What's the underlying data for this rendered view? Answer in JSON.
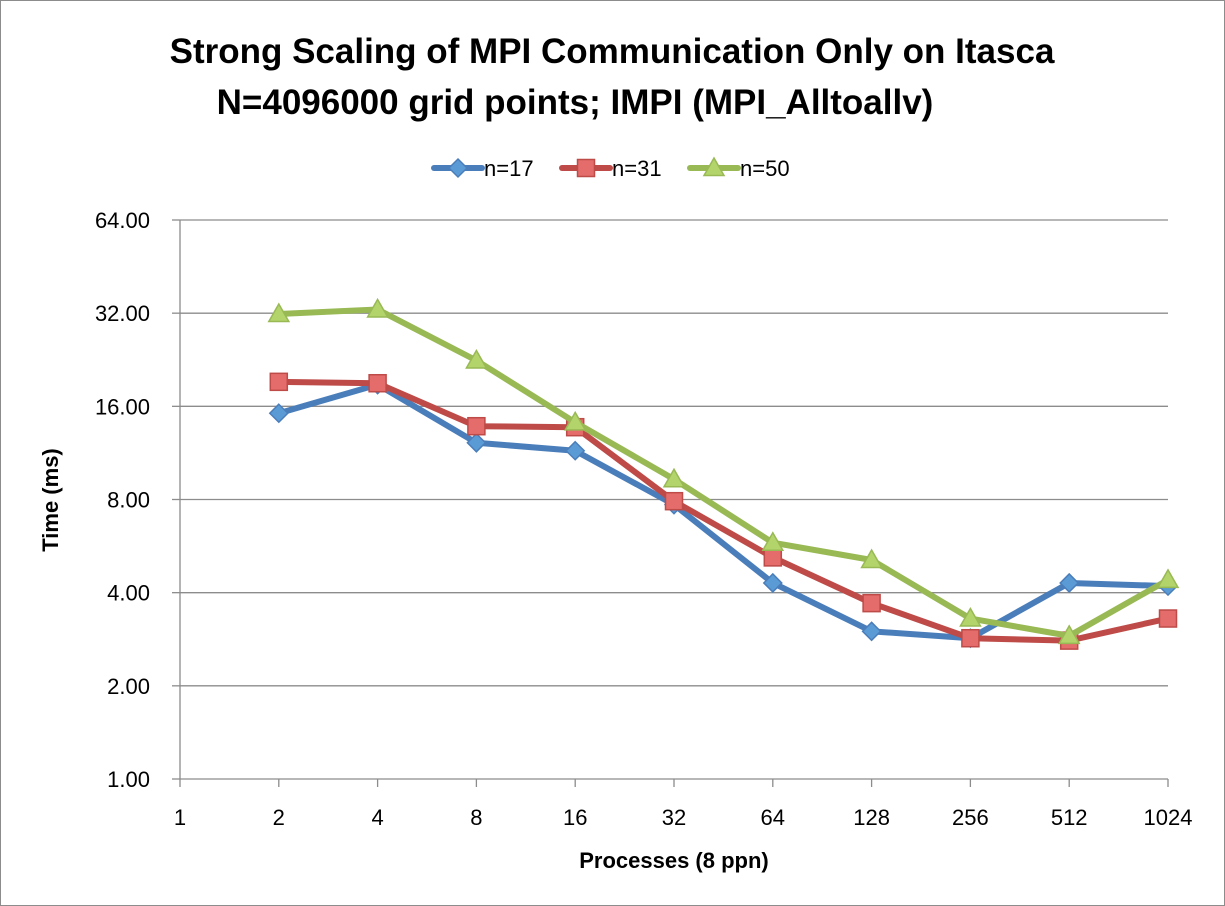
{
  "chart_data": {
    "type": "line",
    "title": "Strong Scaling of MPI Communication Only on Itasca",
    "subtitle": "N=4096000 grid points; IMPI (MPI_Alltoallv)",
    "xlabel": "Processes (8 ppn)",
    "ylabel": "Time (ms)",
    "y_scale": "log2",
    "ylim": [
      1,
      64
    ],
    "y_ticks": [
      1,
      2,
      4,
      8,
      16,
      32,
      64
    ],
    "y_tick_labels": [
      "1.00",
      "2.00",
      "4.00",
      "8.00",
      "16.00",
      "32.00",
      "64.00"
    ],
    "categories": [
      "1",
      "2",
      "4",
      "8",
      "16",
      "32",
      "64",
      "128",
      "256",
      "512",
      "1024"
    ],
    "grid": "horizontal",
    "legend_position": "top",
    "series": [
      {
        "name": "n=17",
        "color": "#4a7ebb",
        "fill": "#5b9bd5",
        "marker": "diamond",
        "values": [
          null,
          15.2,
          18.8,
          12.2,
          11.5,
          7.7,
          4.3,
          3.0,
          2.85,
          4.3,
          4.2
        ]
      },
      {
        "name": "n=31",
        "color": "#be4b48",
        "fill": "#e46c6a",
        "marker": "square",
        "values": [
          null,
          19.2,
          19.0,
          13.8,
          13.7,
          7.9,
          5.2,
          3.7,
          2.85,
          2.8,
          3.3
        ]
      },
      {
        "name": "n=50",
        "color": "#98b954",
        "fill": "#b3d46b",
        "marker": "triangle",
        "values": [
          null,
          31.8,
          32.9,
          22.5,
          14.2,
          9.3,
          5.8,
          5.1,
          3.3,
          2.9,
          4.4
        ]
      }
    ]
  }
}
